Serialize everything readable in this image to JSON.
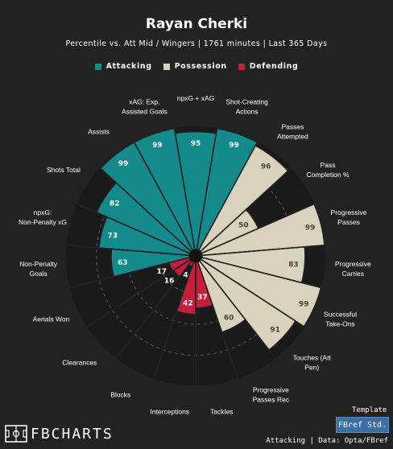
{
  "header": {
    "title": "Rayan Cherki",
    "subtitle": "Percentile vs. Att Mid / Wingers | 1761 minutes | Last 365 Days"
  },
  "legend": [
    {
      "label": "Attacking",
      "color": "#148a8c"
    },
    {
      "label": "Possession",
      "color": "#d9d3bd"
    },
    {
      "label": "Defending",
      "color": "#c41e3a"
    }
  ],
  "footer": {
    "template_label": "Template",
    "template_button": "FBref Std.",
    "note": "Attacking | Data: Opta/FBref",
    "brand": "FBCHARTS"
  },
  "chart_data": {
    "type": "polar-bar",
    "title": "Rayan Cherki",
    "subtitle": "Percentile vs. Att Mid / Wingers | 1761 minutes | Last 365 Days",
    "rlim": [
      0,
      100
    ],
    "categories": [
      {
        "label": "npxG + xAG",
        "value": 95,
        "group": "Attacking"
      },
      {
        "label": "Shot-Creating Actions",
        "value": 99,
        "group": "Attacking"
      },
      {
        "label": "Passes Attempted",
        "value": 96,
        "group": "Possession"
      },
      {
        "label": "Pass Completion %",
        "value": 50,
        "group": "Possession"
      },
      {
        "label": "Progressive Passes",
        "value": 99,
        "group": "Possession"
      },
      {
        "label": "Progressive Carries",
        "value": 83,
        "group": "Possession"
      },
      {
        "label": "Successful Take-Ons",
        "value": 99,
        "group": "Possession"
      },
      {
        "label": "Touches (Att Pen)",
        "value": 91,
        "group": "Possession"
      },
      {
        "label": "Progressive Passes Rec",
        "value": 60,
        "group": "Possession"
      },
      {
        "label": "Tackles",
        "value": 37,
        "group": "Defending"
      },
      {
        "label": "Interceptions",
        "value": 42,
        "group": "Defending"
      },
      {
        "label": "Blocks",
        "value": 4,
        "group": "Defending"
      },
      {
        "label": "Clearances",
        "value": 16,
        "group": "Defending"
      },
      {
        "label": "Aerials Won",
        "value": 17,
        "group": "Defending"
      },
      {
        "label": "Non-Penalty Goals",
        "value": 63,
        "group": "Attacking"
      },
      {
        "label": "npxG: Non-Penalty xG",
        "value": 73,
        "group": "Attacking"
      },
      {
        "label": "Shots Total",
        "value": 82,
        "group": "Attacking"
      },
      {
        "label": "Assists",
        "value": 99,
        "group": "Attacking"
      },
      {
        "label": "xAG: Exp. Assisted Goals",
        "value": 99,
        "group": "Attacking"
      }
    ]
  }
}
